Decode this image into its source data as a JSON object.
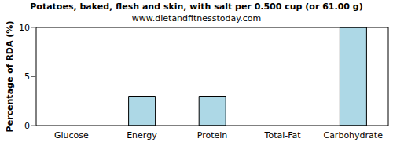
{
  "chart_data": {
    "type": "bar",
    "title": "Potatoes, baked, flesh and skin, with salt per 0.500 cup (or 61.00 g)",
    "subtitle": "www.dietandfitnesstoday.com",
    "y_label": "Percentage of RDA (%)",
    "categories": [
      "Glucose",
      "Energy",
      "Protein",
      "Total-Fat",
      "Carbohydrate"
    ],
    "values": [
      0,
      3,
      3,
      0,
      10
    ],
    "color": "#add8e6",
    "ylim": [
      0,
      10
    ],
    "yticks": [
      0,
      5,
      10
    ],
    "grid": false
  }
}
